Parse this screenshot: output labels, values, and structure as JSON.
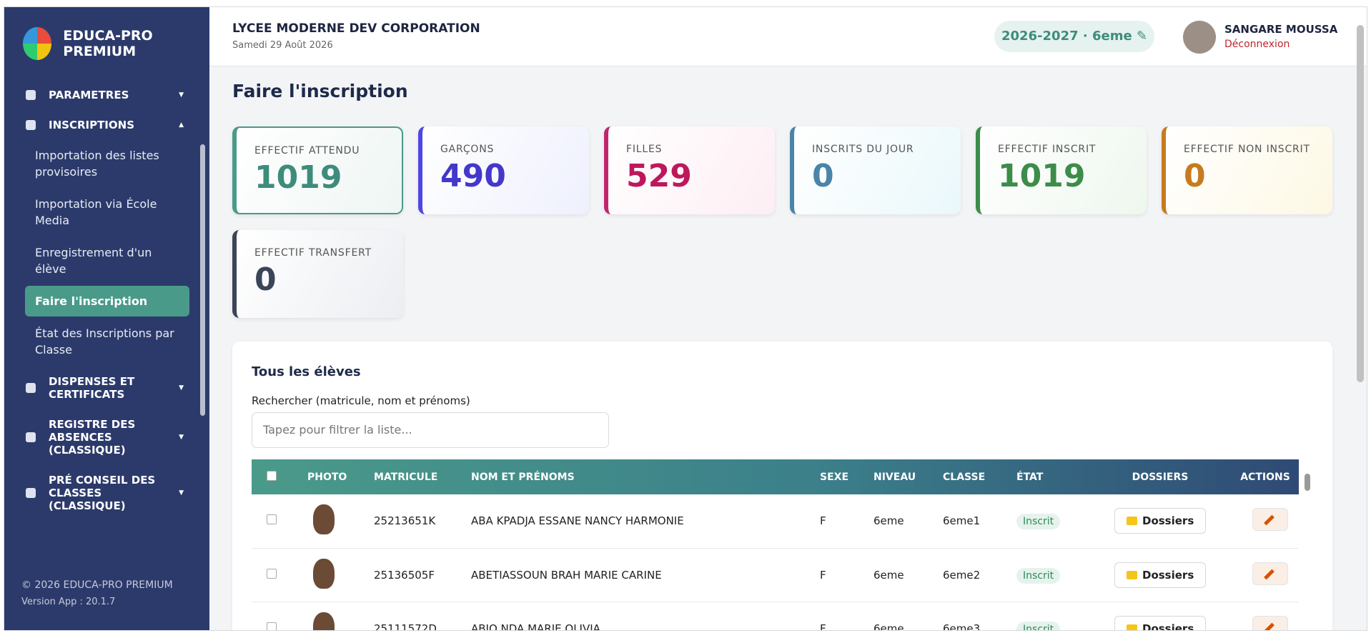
{
  "sidebar": {
    "brand": "EDUCA-PRO PREMIUM",
    "menu": [
      {
        "label": "PARAMETRES"
      },
      {
        "label": "INSCRIPTIONS",
        "items": [
          "Importation des listes provisoires",
          "Importation via École Media",
          "Enregistrement d'un élève",
          "Faire l'inscription",
          "État des Inscriptions par Classe"
        ]
      },
      {
        "label": "DISPENSES ET CERTIFICATS"
      },
      {
        "label": "REGISTRE DES ABSENCES (CLASSIQUE)"
      },
      {
        "label": "PRÉ CONSEIL DES CLASSES (CLASSIQUE)"
      }
    ],
    "footer": {
      "copyright": "© 2026 EDUCA-PRO PREMIUM",
      "version": "Version App : 20.1.7"
    }
  },
  "header": {
    "school": "LYCEE MODERNE DEV CORPORATION",
    "date": "Samedi 29 Août 2026",
    "year_badge": "2026-2027 · 6eme ✎",
    "user": "SANGARE MOUSSA",
    "logout": "Déconnexion"
  },
  "page_title": "Faire l'inscription",
  "stats": [
    {
      "label": "EFFECTIF ATTENDU",
      "value": 1019
    },
    {
      "label": "GARÇONS",
      "value": 490
    },
    {
      "label": "FILLES",
      "value": 529
    },
    {
      "label": "INSCRITS DU JOUR",
      "value": 0
    },
    {
      "label": "EFFECTIF INSCRIT",
      "value": 1019
    },
    {
      "label": "EFFECTIF NON INSCRIT",
      "value": 0
    },
    {
      "label": "EFFECTIF TRANSFERT",
      "value": 0
    }
  ],
  "students": {
    "title": "Tous les élèves",
    "search_label": "Rechercher (matricule, nom et prénoms)",
    "search_placeholder": "Tapez pour filtrer la liste...",
    "columns": [
      "PHOTO",
      "MATRICULE",
      "NOM ET PRÉNOMS",
      "SEXE",
      "NIVEAU",
      "CLASSE",
      "ÉTAT",
      "DOSSIERS",
      "ACTIONS"
    ],
    "dossier_button": "Dossiers",
    "rows": [
      [
        "25213651K",
        "ABA KPADJA ESSANE NANCY HARMONIE",
        "F",
        "6eme",
        "6eme1",
        "Inscrit"
      ],
      [
        "25136505F",
        "ABETIASSOUN BRAH MARIE CARINE",
        "F",
        "6eme",
        "6eme2",
        "Inscrit"
      ],
      [
        "25111572D",
        "ABIO NDA MARIE OLIVIA",
        "F",
        "6eme",
        "6eme3",
        "Inscrit"
      ]
    ]
  }
}
